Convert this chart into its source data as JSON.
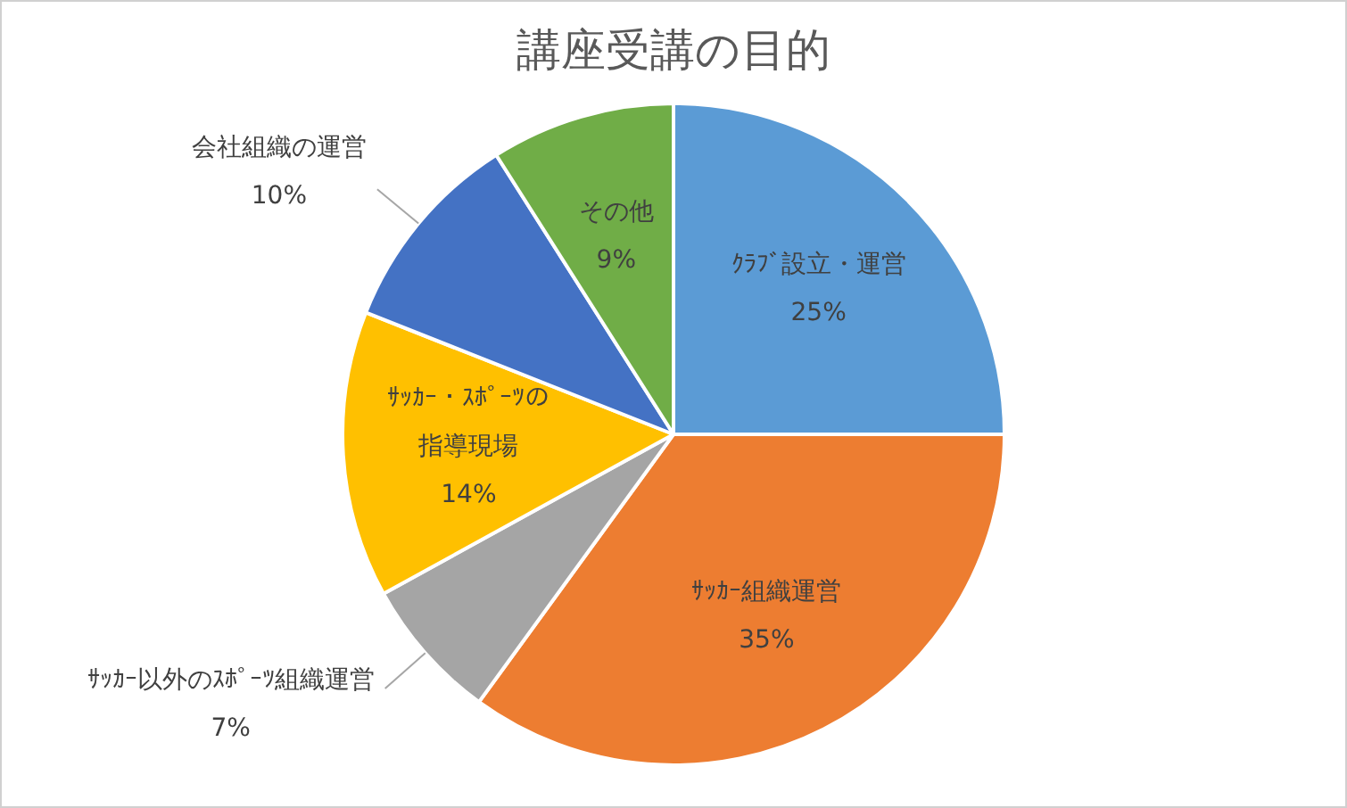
{
  "chart_data": {
    "type": "pie",
    "title": "講座受講の目的",
    "categories": [
      "ｸﾗﾌﾞ設立・運営",
      "ｻｯｶｰ組織運営",
      "ｻｯｶｰ以外のｽﾎﾟｰﾂ組織運営",
      "ｻｯｶｰ・ｽﾎﾟｰﾂの指導現場",
      "会社組織の運営",
      "その他"
    ],
    "values": [
      25,
      35,
      7,
      14,
      10,
      9
    ],
    "value_labels": [
      "25%",
      "35%",
      "7%",
      "14%",
      "10%",
      "9%"
    ],
    "colors": [
      "#5b9bd5",
      "#ed7d31",
      "#a5a5a5",
      "#ffc000",
      "#4472c4",
      "#70ad47"
    ],
    "legend": false
  }
}
